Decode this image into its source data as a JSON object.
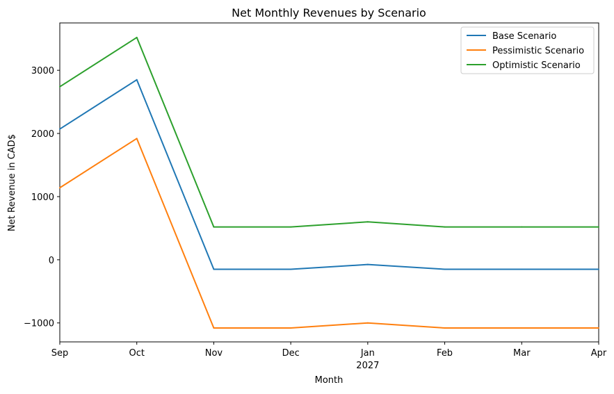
{
  "chart_data": {
    "type": "line",
    "title": "Net Monthly Revenues by Scenario",
    "xlabel": "Month",
    "ylabel": "Net Revenue in CAD$",
    "categories": [
      "Sep",
      "Oct",
      "Nov",
      "Dec",
      "Jan",
      "Feb",
      "Mar",
      "Apr"
    ],
    "category_sublabels": [
      "",
      "",
      "",
      "",
      "2027",
      "",
      "",
      ""
    ],
    "ylim": [
      -1300,
      3750
    ],
    "yticks": [
      -1000,
      0,
      1000,
      2000,
      3000
    ],
    "ytick_labels": [
      "−1000",
      "0",
      "1000",
      "2000",
      "3000"
    ],
    "grid": false,
    "legend_position": "top-right",
    "series": [
      {
        "name": "Base Scenario",
        "color": "#1f77b4",
        "values": [
          2070,
          2850,
          -150,
          -150,
          -75,
          -150,
          -150,
          -150
        ]
      },
      {
        "name": "Pessimistic Scenario",
        "color": "#ff7f0e",
        "values": [
          1140,
          1920,
          -1080,
          -1080,
          -1000,
          -1080,
          -1080,
          -1080
        ]
      },
      {
        "name": "Optimistic Scenario",
        "color": "#2ca02c",
        "values": [
          2740,
          3520,
          520,
          520,
          600,
          520,
          520,
          520
        ]
      }
    ]
  }
}
